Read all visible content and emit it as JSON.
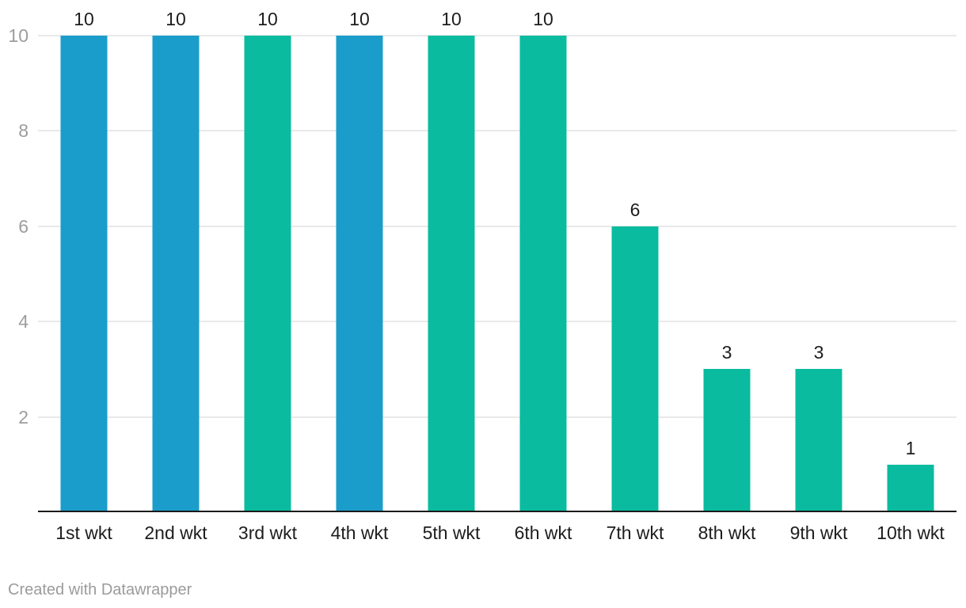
{
  "chart_data": {
    "type": "bar",
    "title": "",
    "xlabel": "",
    "ylabel": "",
    "categories": [
      "1st wkt",
      "2nd wkt",
      "3rd wkt",
      "4th wkt",
      "5th wkt",
      "6th wkt",
      "7th wkt",
      "8th wkt",
      "9th wkt",
      "10th wkt"
    ],
    "values": [
      10,
      10,
      10,
      10,
      10,
      10,
      6,
      3,
      3,
      1
    ],
    "value_labels": [
      "10",
      "10",
      "10",
      "10",
      "10",
      "10",
      "6",
      "3",
      "3",
      "1"
    ],
    "bar_colors": [
      "#1a9dcb",
      "#1a9dcb",
      "#0abb9f",
      "#1a9dcb",
      "#0abb9f",
      "#0abb9f",
      "#0abb9f",
      "#0abb9f",
      "#0abb9f",
      "#0abb9f"
    ],
    "y_ticks": [
      2,
      4,
      6,
      8,
      10
    ],
    "ylim": [
      0,
      10
    ],
    "grid": true,
    "legend": "none"
  },
  "footer": {
    "credit": "Created with Datawrapper"
  },
  "colors": {
    "bar_blue": "#1a9dcb",
    "bar_teal": "#0abb9f",
    "grid_line": "#e9e9e9",
    "axis_tick_label": "#9d9d9d",
    "category_label": "#1d1d1d",
    "value_label": "#1d1d1d",
    "baseline": "#1a1a1a",
    "credit_text": "#9b9b9b",
    "background": "#ffffff"
  }
}
